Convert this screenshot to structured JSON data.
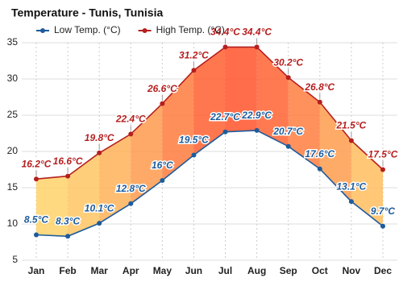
{
  "chart_data": {
    "type": "range-line",
    "title": "Temperature - Tunis, Tunisia",
    "categories": [
      "Jan",
      "Feb",
      "Mar",
      "Apr",
      "May",
      "Jun",
      "Jul",
      "Aug",
      "Sep",
      "Oct",
      "Nov",
      "Dec"
    ],
    "series": [
      {
        "name": "Low Temp. (°C)",
        "color": "#1d5b9c",
        "values": [
          8.5,
          8.3,
          10.1,
          12.8,
          16,
          19.5,
          22.7,
          22.9,
          20.7,
          17.6,
          13.1,
          9.7
        ],
        "value_labels": [
          "8.5°C",
          "8.3°C",
          "10.1°C",
          "12.8°C",
          "16°C",
          "19.5°C",
          "22.7°C",
          "22.9°C",
          "20.7°C",
          "17.6°C",
          "13.1°C",
          "9.7°C"
        ]
      },
      {
        "name": "High Temp. (°C)",
        "color": "#b51f1f",
        "values": [
          16.2,
          16.6,
          19.8,
          22.4,
          26.6,
          31.2,
          34.4,
          34.4,
          30.2,
          26.8,
          21.5,
          17.5
        ],
        "value_labels": [
          "16.2°C",
          "16.6°C",
          "19.8°C",
          "22.4°C",
          "26.6°C",
          "31.2°C",
          "34.4°C",
          "34.4°C",
          "30.2°C",
          "26.8°C",
          "21.5°C",
          "17.5°C"
        ]
      }
    ],
    "ylim": [
      5,
      35
    ],
    "yticks": [
      5,
      10,
      15,
      20,
      25,
      30,
      35
    ],
    "grid": true
  }
}
